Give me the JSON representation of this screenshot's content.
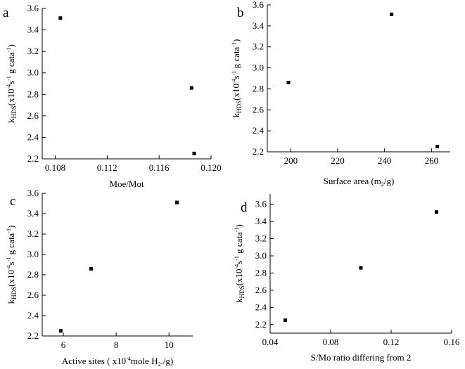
{
  "chart_data": [
    {
      "panel": "a",
      "type": "scatter",
      "xlabel": "Moe/Mot",
      "ylabel": {
        "k": "k",
        "sub": "HDS",
        "pre": "(x10",
        "exp": "-4",
        "mid": "s",
        "exp2": "-1",
        "post": "g cata",
        "exp3": "-1",
        "close": ")"
      },
      "xlim": [
        0.107,
        0.12
      ],
      "ylim": [
        2.2,
        3.6
      ],
      "xticks": [
        0.108,
        0.112,
        0.116,
        0.12
      ],
      "xtick_labels": [
        "0.108",
        "0.112",
        "0.116",
        "0.120"
      ],
      "yticks": [
        2.2,
        2.4,
        2.6,
        2.8,
        3.0,
        3.2,
        3.4,
        3.6
      ],
      "ytick_labels": [
        "2.2",
        "2.4",
        "2.6",
        "2.8",
        "3.0",
        "3.2",
        "3.4",
        "3.6"
      ],
      "points": [
        {
          "x": 0.1084,
          "y": 3.51
        },
        {
          "x": 0.1185,
          "y": 2.86
        },
        {
          "x": 0.1187,
          "y": 2.25
        }
      ]
    },
    {
      "panel": "b",
      "type": "scatter",
      "xlabel": {
        "main": "Surface area (m",
        "sub": "2",
        "post": "/g)"
      },
      "ylabel": {
        "k": "k",
        "sub": "HDS",
        "pre": "(x10",
        "exp": "-4",
        "mid": "s",
        "exp2": "-1",
        "post": "g cata",
        "exp3": "-1",
        "close": ")"
      },
      "xlim": [
        190,
        268
      ],
      "ylim": [
        2.2,
        3.6
      ],
      "xticks": [
        200,
        220,
        240,
        260
      ],
      "xtick_labels": [
        "200",
        "220",
        "240",
        "260"
      ],
      "yticks": [
        2.2,
        2.4,
        2.6,
        2.8,
        3.0,
        3.2,
        3.4,
        3.6
      ],
      "ytick_labels": [
        "2.2",
        "2.4",
        "2.6",
        "2.8",
        "3.0",
        "3.2",
        "3.4",
        "3.6"
      ],
      "points": [
        {
          "x": 199,
          "y": 2.86
        },
        {
          "x": 243,
          "y": 3.51
        },
        {
          "x": 262.5,
          "y": 2.25
        }
      ]
    },
    {
      "panel": "c",
      "type": "scatter",
      "xlabel": {
        "main": "Active sites ( x10",
        "exp": "-4",
        "mid": "mole H",
        "sub": "2",
        "post": "./g)"
      },
      "ylabel": {
        "k": "k",
        "sub": "HDS",
        "pre": "(x10",
        "exp": "-4",
        "mid": "s",
        "exp2": "-1",
        "post": "g cata",
        "exp3": "-1",
        "close": ")"
      },
      "xlim": [
        5.2,
        10.9
      ],
      "ylim": [
        2.2,
        3.6
      ],
      "xticks": [
        6,
        8,
        10
      ],
      "xtick_labels": [
        "6",
        "8",
        "10"
      ],
      "yticks": [
        2.2,
        2.4,
        2.6,
        2.8,
        3.0,
        3.2,
        3.4,
        3.6
      ],
      "ytick_labels": [
        "2.2",
        "2.4",
        "2.6",
        "2.8",
        "3.0",
        "3.2",
        "3.4",
        "3.6"
      ],
      "points": [
        {
          "x": 5.9,
          "y": 2.25
        },
        {
          "x": 7.05,
          "y": 2.86
        },
        {
          "x": 10.3,
          "y": 3.51
        }
      ]
    },
    {
      "panel": "d",
      "type": "scatter",
      "xlabel": "S/Mo ratio differing from 2",
      "ylabel": {
        "k": "k",
        "sub": "HDS",
        "pre": "(x10",
        "exp": "-4",
        "mid": "s",
        "exp2": "-1",
        "post": "g cata",
        "exp3": "-1",
        "close": ")"
      },
      "xlim": [
        0.04,
        0.16
      ],
      "ylim": [
        2.1,
        3.72
      ],
      "xticks": [
        0.04,
        0.08,
        0.12,
        0.16
      ],
      "xtick_labels": [
        "0.04",
        "0.08",
        "0.12",
        "0.16"
      ],
      "yticks": [
        2.2,
        2.4,
        2.6,
        2.8,
        3.0,
        3.2,
        3.4,
        3.6
      ],
      "ytick_labels": [
        "2.2",
        "2.4",
        "2.6",
        "2.8",
        "3.0",
        "3.2",
        "3.4",
        "3.6"
      ],
      "points": [
        {
          "x": 0.05,
          "y": 2.25
        },
        {
          "x": 0.1,
          "y": 2.86
        },
        {
          "x": 0.15,
          "y": 3.51
        }
      ]
    }
  ]
}
